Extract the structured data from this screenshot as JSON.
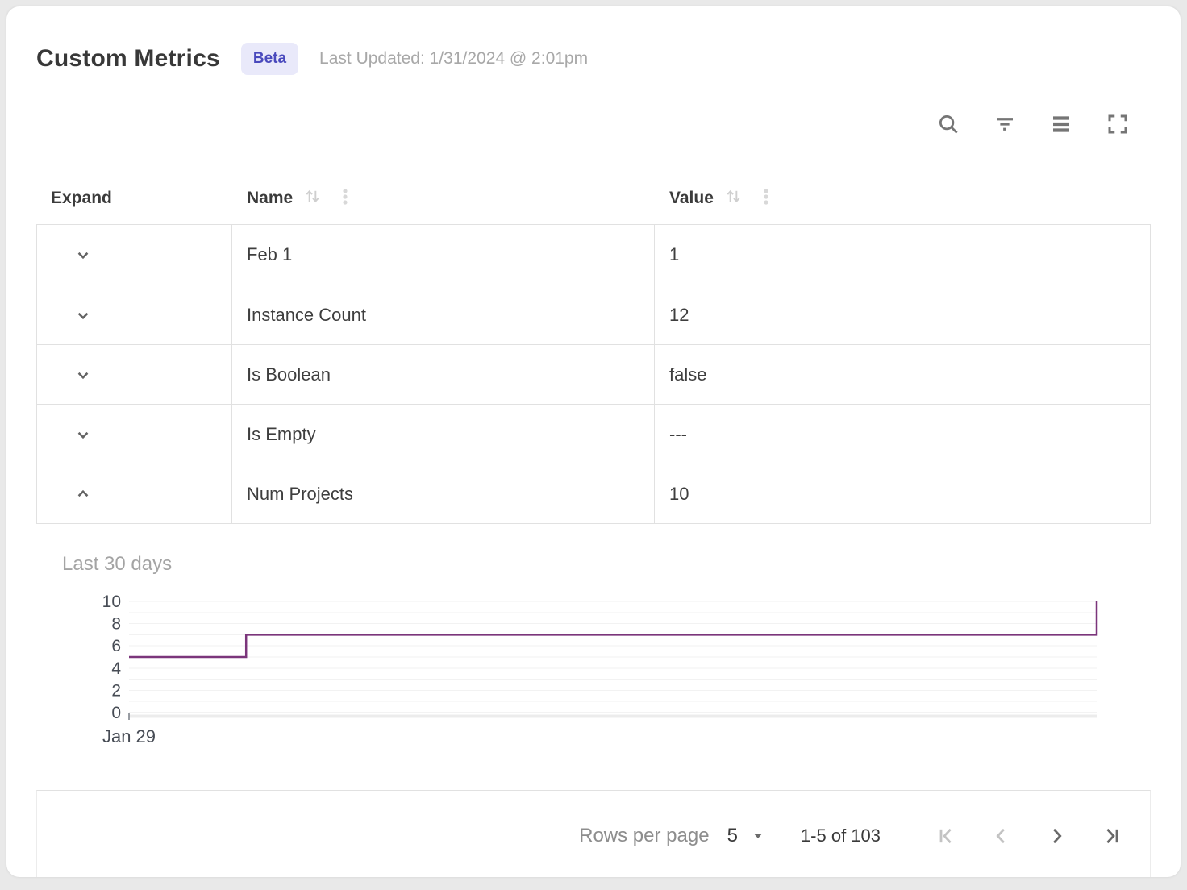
{
  "header": {
    "title": "Custom Metrics",
    "badge": "Beta",
    "last_updated": "Last Updated: 1/31/2024 @ 2:01pm"
  },
  "toolbar": {
    "icons": [
      "search",
      "filter",
      "density",
      "fullscreen"
    ]
  },
  "table": {
    "columns": [
      {
        "label": "Expand",
        "sortable": false
      },
      {
        "label": "Name",
        "sortable": true
      },
      {
        "label": "Value",
        "sortable": true
      }
    ],
    "rows": [
      {
        "name": "Feb 1",
        "value": "1",
        "expanded": false
      },
      {
        "name": "Instance Count",
        "value": "12",
        "expanded": false
      },
      {
        "name": "Is Boolean",
        "value": "false",
        "expanded": false
      },
      {
        "name": "Is Empty",
        "value": "---",
        "expanded": false
      },
      {
        "name": "Num Projects",
        "value": "10",
        "expanded": true
      }
    ]
  },
  "detail": {
    "title": "Last 30 days"
  },
  "chart_data": {
    "type": "line",
    "subtype": "step",
    "title": "Last 30 days",
    "series": [
      {
        "name": "Num Projects",
        "color": "#7b357b",
        "points_x_fraction": [
          0,
          0.121,
          0.121,
          1,
          1
        ],
        "points_y": [
          5,
          5,
          7,
          7,
          10
        ]
      }
    ],
    "y_ticks": [
      10,
      8,
      6,
      4,
      2,
      0
    ],
    "ylim": [
      0,
      10
    ],
    "x_first_tick_label": "Jan 29",
    "grid": "horizontal",
    "legend": "none"
  },
  "footer": {
    "rows_per_page_label": "Rows per page",
    "rows_per_page_value": "5",
    "range_label": "1-5 of 103",
    "pagination": {
      "first_enabled": false,
      "prev_enabled": false,
      "next_enabled": true,
      "last_enabled": true
    }
  },
  "colors": {
    "line": "#7b357b",
    "grid_line": "#f2f2f2",
    "axis_label": "#474c55",
    "border": "#e1e1e1",
    "badge_bg": "#e9e9fa",
    "badge_text": "#4949bd"
  }
}
